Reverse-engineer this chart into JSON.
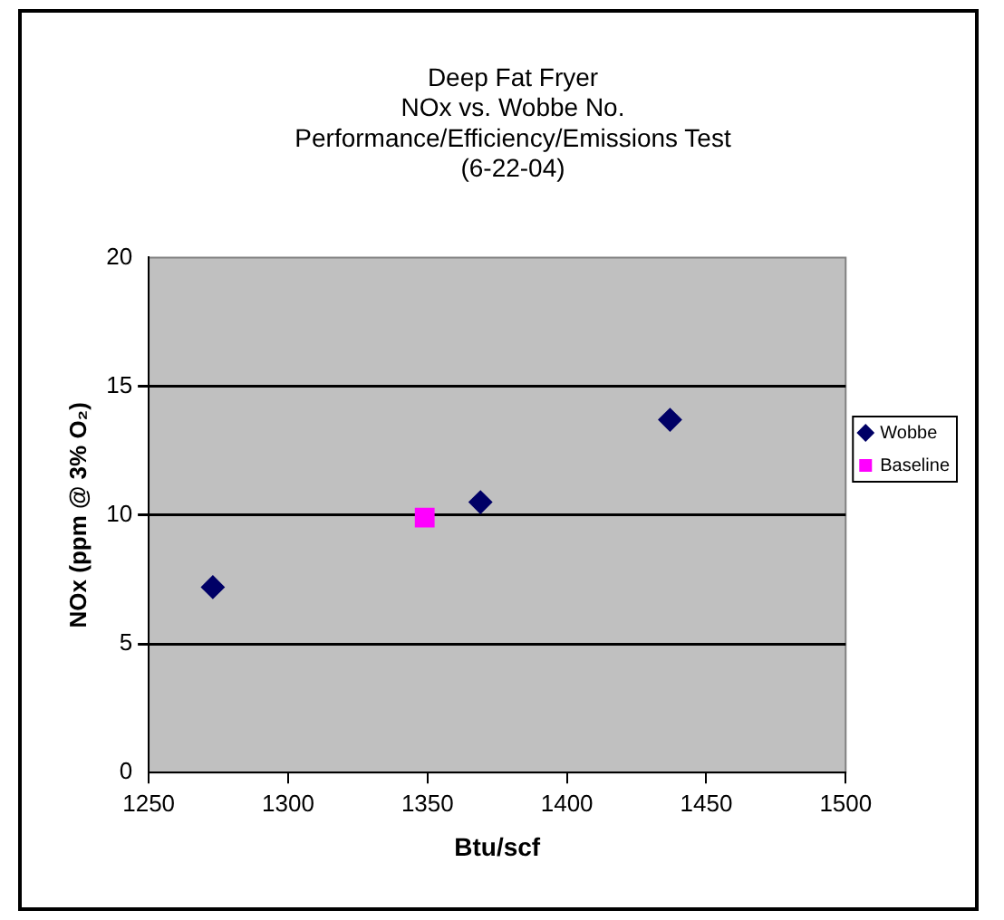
{
  "chart_data": {
    "type": "scatter",
    "title": "Deep Fat Fryer\nNOx vs. Wobbe No.\nPerformance/Efficiency/Emissions Test\n(6-22-04)",
    "xlabel": "Btu/scf",
    "ylabel": "NOx (ppm @ 3% O₂)",
    "series": [
      {
        "name": "Wobbe",
        "color": "#000066",
        "marker": "diamond",
        "x": [
          1273,
          1369,
          1437
        ],
        "values": [
          7.2,
          10.5,
          13.7
        ]
      },
      {
        "name": "Baseline",
        "color": "#ff00ff",
        "marker": "square",
        "x": [
          1349
        ],
        "values": [
          9.9
        ]
      }
    ],
    "xlim": [
      1250,
      1500
    ],
    "xticks": [
      1250,
      1300,
      1350,
      1400,
      1450,
      1500
    ],
    "ylim": [
      0,
      20
    ],
    "yticks": [
      0,
      5,
      10,
      15,
      20
    ],
    "grid": "y",
    "legend": "right"
  }
}
